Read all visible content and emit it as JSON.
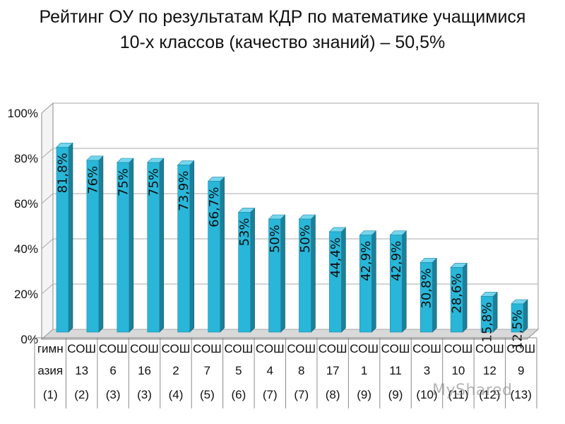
{
  "chart_data": {
    "type": "bar",
    "title": "Рейтинг ОУ по результатам КДР по математике учащимися 10-х классов (качество знаний) – 50,5%",
    "ylim": [
      0,
      100
    ],
    "y_ticks": [
      "0%",
      "20%",
      "40%",
      "60%",
      "80%",
      "100%"
    ],
    "grid": true,
    "legend": "none",
    "bar_color": "#29b6d8",
    "categories": [
      {
        "line1": "гимн",
        "line2": "азия",
        "rank": "(1)"
      },
      {
        "line1": "СОШ",
        "line2": "13",
        "rank": "(2)"
      },
      {
        "line1": "СОШ",
        "line2": "6",
        "rank": "(3)"
      },
      {
        "line1": "СОШ",
        "line2": "16",
        "rank": "(3)"
      },
      {
        "line1": "СОШ",
        "line2": "2",
        "rank": "(4)"
      },
      {
        "line1": "СОШ",
        "line2": "7",
        "rank": "(5)"
      },
      {
        "line1": "СОШ",
        "line2": "5",
        "rank": "(6)"
      },
      {
        "line1": "СОШ",
        "line2": "4",
        "rank": "(7)"
      },
      {
        "line1": "СОШ",
        "line2": "8",
        "rank": "(7)"
      },
      {
        "line1": "СОШ",
        "line2": "17",
        "rank": "(8)"
      },
      {
        "line1": "СОШ",
        "line2": "1",
        "rank": "(9)"
      },
      {
        "line1": "СОШ",
        "line2": "11",
        "rank": "(9)"
      },
      {
        "line1": "СОШ",
        "line2": "3",
        "rank": "(10)"
      },
      {
        "line1": "СОШ",
        "line2": "10",
        "rank": "(11)"
      },
      {
        "line1": "СОШ",
        "line2": "12",
        "rank": "(12)"
      },
      {
        "line1": "СОШ",
        "line2": "9",
        "rank": "(13)"
      }
    ],
    "values": [
      81.8,
      76,
      75,
      75,
      73.9,
      66.7,
      53,
      50,
      50,
      44.4,
      42.9,
      42.9,
      30.8,
      28.6,
      15.8,
      12.5
    ],
    "data_labels": [
      "81,8%",
      "76%",
      "75%",
      "75%",
      "73,9%",
      "66,7%",
      "53%",
      "50%",
      "50%",
      "44,4%",
      "42,9%",
      "42,9%",
      "30,8%",
      "28,6%",
      "15,8%",
      "12,5%"
    ]
  },
  "watermark": "MyShared"
}
